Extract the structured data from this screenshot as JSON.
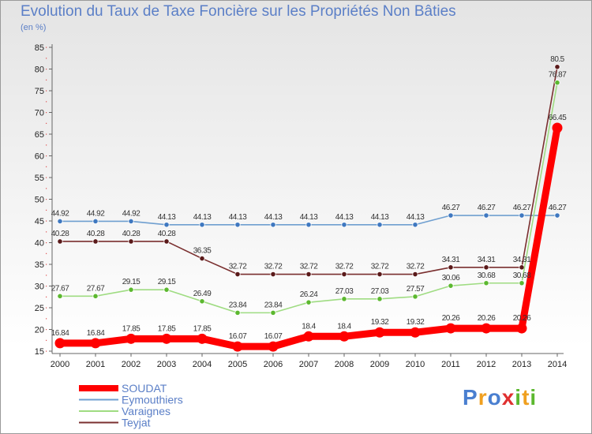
{
  "chart_data": {
    "type": "line",
    "title": "Evolution du Taux de Taxe Foncière sur les Propriétés Non Bâties",
    "ylabel": "(en %)",
    "ylim": [
      15,
      85
    ],
    "yticks": [
      15,
      20,
      25,
      30,
      35,
      40,
      45,
      50,
      55,
      60,
      65,
      70,
      75,
      80,
      85
    ],
    "categories": [
      "2000",
      "2001",
      "2002",
      "2003",
      "2004",
      "2005",
      "2006",
      "2007",
      "2008",
      "2009",
      "2010",
      "2011",
      "2012",
      "2013",
      "2014"
    ],
    "series": [
      {
        "name": "Eymouthiers",
        "color": "#6f9fd0",
        "marker": "#3f78c0",
        "values": [
          44.92,
          44.92,
          44.92,
          44.13,
          44.13,
          44.13,
          44.13,
          44.13,
          44.13,
          44.13,
          44.13,
          46.27,
          46.27,
          46.27,
          46.27
        ],
        "labels": [
          "44.92",
          "44.92",
          "44.92",
          "44.13",
          "44.13",
          "44.13",
          "44.13",
          "44.13",
          "44.13",
          "44.13",
          "44.13",
          "46.27",
          "46.27",
          "46.27",
          "46.27"
        ]
      },
      {
        "name": "Teyjat",
        "color": "#7a2f2f",
        "marker": "#5a1a1a",
        "values": [
          40.28,
          40.28,
          40.28,
          40.28,
          36.35,
          32.72,
          32.72,
          32.72,
          32.72,
          32.72,
          32.72,
          34.31,
          34.31,
          34.31,
          80.5
        ],
        "labels": [
          "40.28",
          "40.28",
          "40.28",
          "40.28",
          "36.35",
          "32.72",
          "32.72",
          "32.72",
          "32.72",
          "32.72",
          "32.72",
          "34.31",
          "34.31",
          "34.31",
          "80.5"
        ]
      },
      {
        "name": "Varaignes",
        "color": "#9fdc82",
        "marker": "#5cb82f",
        "values": [
          27.67,
          27.67,
          29.15,
          29.15,
          26.49,
          23.84,
          23.84,
          26.24,
          27.03,
          27.03,
          27.57,
          30.06,
          30.68,
          30.68,
          76.87
        ],
        "labels": [
          "27.67",
          "27.67",
          "29.15",
          "29.15",
          "26.49",
          "23.84",
          "23.84",
          "26.24",
          "27.03",
          "27.03",
          "27.57",
          "30.06",
          "30.68",
          "30.68",
          "76.87"
        ]
      },
      {
        "name": "SOUDAT",
        "color": "#ff0000",
        "marker": "#ff0000",
        "thick": true,
        "values": [
          16.84,
          16.84,
          17.85,
          17.85,
          17.85,
          16.07,
          16.07,
          18.4,
          18.4,
          19.32,
          19.32,
          20.26,
          20.26,
          20.26,
          66.45
        ],
        "labels": [
          "16.84",
          "16.84",
          "17.85",
          "17.85",
          "17.85",
          "16.07",
          "16.07",
          "18.4",
          "18.4",
          "19.32",
          "19.32",
          "20.26",
          "20.26",
          "20.26",
          "66.45"
        ]
      }
    ],
    "legend": [
      "SOUDAT",
      "Eymouthiers",
      "Varaignes",
      "Teyjat"
    ],
    "legend_position": "bottom-left"
  },
  "branding": {
    "logo_text": "Proxiti",
    "colors": [
      "#4a7fd0",
      "#f0a020",
      "#4a7fd0",
      "#e03030",
      "#5cb82f",
      "#f0a020",
      "#5cb82f"
    ]
  }
}
